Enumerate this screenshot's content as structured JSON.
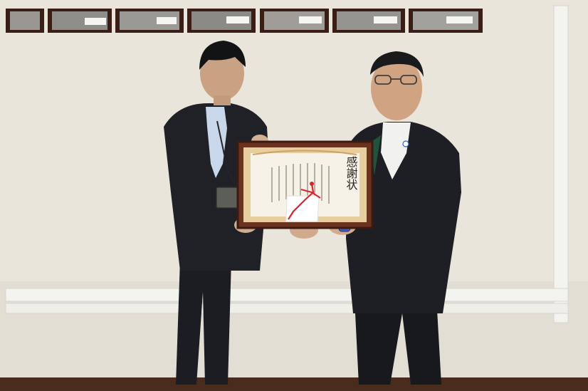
{
  "scene": {
    "certificate": {
      "heading": "感謝状"
    },
    "colors": {
      "wall": "#e9e5db",
      "frame": "#5a2d19",
      "suit": "#1f2126",
      "pipe": "#f2f2ef",
      "floor_strip": "#4a2c1f",
      "ribbon": "#d6262c"
    }
  }
}
